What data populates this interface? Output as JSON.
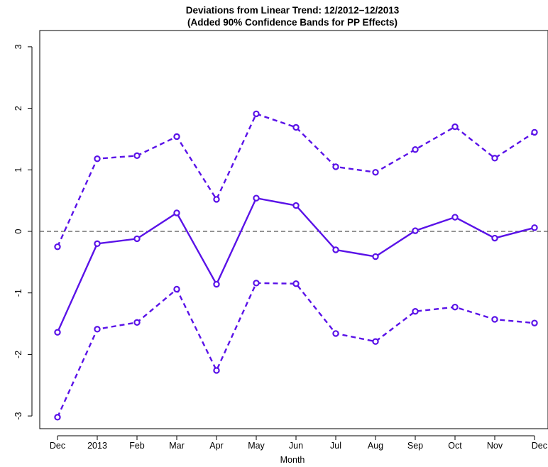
{
  "chart_data": {
    "type": "line",
    "title": "Deviations from Linear Trend: 12/2012−12/2013",
    "subtitle": "(Added 90% Confidence Bands for PP Effects)",
    "xlabel": "Month",
    "ylabel": "",
    "categories": [
      "Dec",
      "2013",
      "Feb",
      "Mar",
      "Apr",
      "May",
      "Jun",
      "Jul",
      "Aug",
      "Sep",
      "Oct",
      "Nov",
      "Dec"
    ],
    "ylim": [
      -3.2,
      3.3
    ],
    "yticks": [
      -3,
      -2,
      -1,
      0,
      1,
      2,
      3
    ],
    "reference_line": 0,
    "series": [
      {
        "values": [
          -0.25,
          1.18,
          1.23,
          1.54,
          0.52,
          1.91,
          1.69,
          1.05,
          0.96,
          1.33,
          1.7,
          1.19,
          1.61
        ],
        "style": "dashed",
        "color": "#5a12e8"
      },
      {
        "values": [
          -1.64,
          -0.2,
          -0.12,
          0.3,
          -0.86,
          0.54,
          0.42,
          -0.3,
          -0.41,
          0.01,
          0.23,
          -0.11,
          0.06
        ],
        "style": "solid",
        "color": "#5a12e8"
      },
      {
        "values": [
          -3.02,
          -1.59,
          -1.48,
          -0.94,
          -2.26,
          -0.84,
          -0.85,
          -1.66,
          -1.79,
          -1.3,
          -1.23,
          -1.43,
          -1.49
        ],
        "style": "dashed",
        "color": "#5a12e8"
      }
    ]
  }
}
